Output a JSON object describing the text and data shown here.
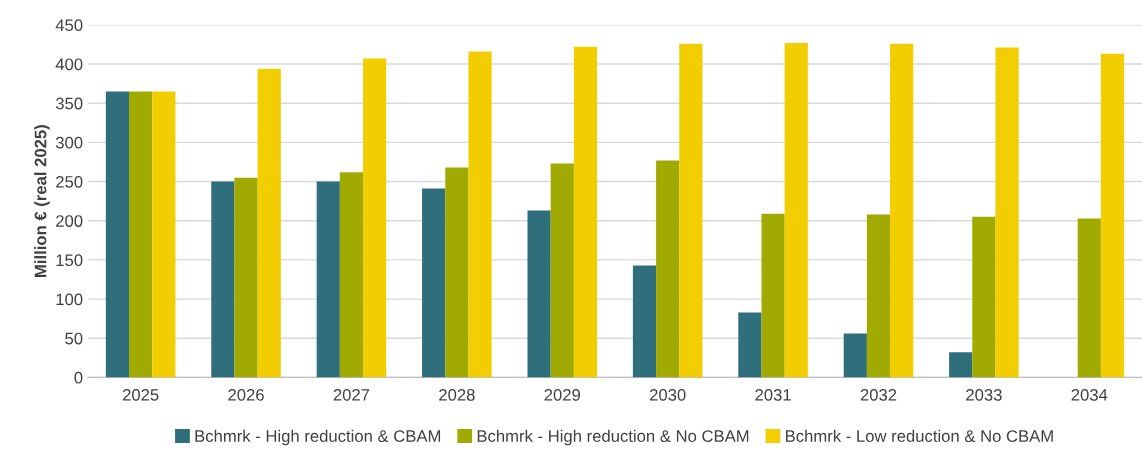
{
  "chart_data": {
    "type": "bar",
    "ylabel": "Million € (real 2025)",
    "categories": [
      "2025",
      "2026",
      "2027",
      "2028",
      "2029",
      "2030",
      "2031",
      "2032",
      "2033",
      "2034"
    ],
    "series": [
      {
        "name": "Bchmrk - High reduction & CBAM",
        "color": "#2e6f7b",
        "values": [
          365,
          250,
          250,
          241,
          213,
          143,
          83,
          56,
          32,
          0
        ]
      },
      {
        "name": "Bchmrk - High reduction & No CBAM",
        "color": "#a0aa00",
        "values": [
          365,
          255,
          262,
          268,
          273,
          277,
          209,
          208,
          205,
          203
        ]
      },
      {
        "name": "Bchmrk - Low reduction & No CBAM",
        "color": "#f2cd00",
        "values": [
          365,
          394,
          407,
          416,
          422,
          426,
          427,
          426,
          421,
          413
        ]
      }
    ],
    "ylim": [
      0,
      450
    ],
    "yticks": [
      0,
      50,
      100,
      150,
      200,
      250,
      300,
      350,
      400,
      450
    ],
    "grid": "y",
    "legend": "bottom"
  }
}
